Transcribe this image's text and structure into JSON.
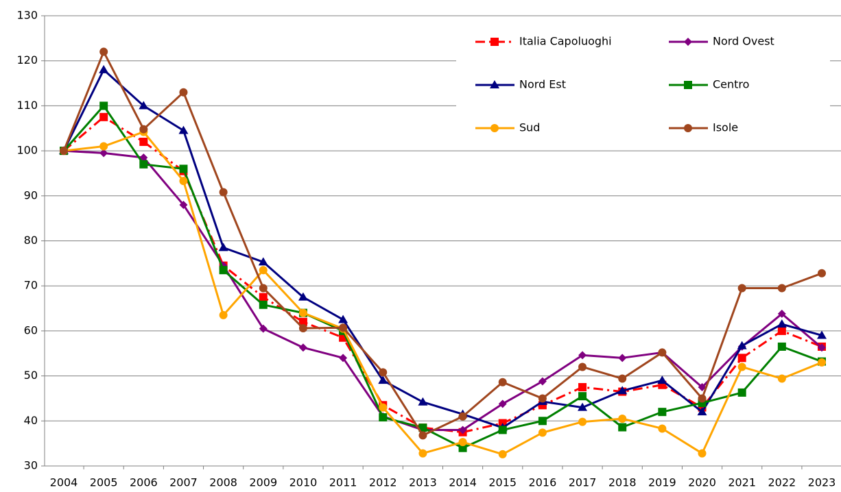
{
  "chart_data": {
    "type": "line",
    "categories": [
      "2004",
      "2005",
      "2006",
      "2007",
      "2008",
      "2009",
      "2010",
      "2011",
      "2012",
      "2013",
      "2014",
      "2015",
      "2016",
      "2017",
      "2018",
      "2019",
      "2020",
      "2021",
      "2022",
      "2023"
    ],
    "ylim": [
      30,
      130
    ],
    "yticks": [
      30,
      40,
      50,
      60,
      70,
      80,
      90,
      100,
      110,
      120,
      130
    ],
    "grid": true,
    "legend": "upper right",
    "series": [
      {
        "name": "Italia Capoluoghi",
        "color": "#ff0000",
        "marker": "square",
        "dash": true,
        "values": [
          100,
          107.5,
          102,
          95.5,
          74.5,
          67.5,
          62,
          58.5,
          43.5,
          38.5,
          37.5,
          39.5,
          43.5,
          47.5,
          46.5,
          48,
          43,
          54,
          60,
          56.5
        ]
      },
      {
        "name": "Nord Ovest",
        "color": "#800080",
        "marker": "diamond",
        "values": [
          100,
          99.5,
          98.5,
          88,
          74.5,
          60.5,
          56.3,
          54,
          41,
          38,
          38,
          43.8,
          48.8,
          54.6,
          54,
          55.2,
          47.5,
          56.5,
          63.8,
          56.3
        ]
      },
      {
        "name": "Nord Est",
        "color": "#000080",
        "marker": "triangle",
        "values": [
          100,
          118,
          110,
          104.5,
          78.5,
          75.3,
          67.5,
          62.5,
          49,
          44.2,
          41.5,
          38.5,
          44.3,
          43,
          46.7,
          49,
          42,
          56.7,
          61.5,
          59
        ]
      },
      {
        "name": "Centro",
        "color": "#008000",
        "marker": "square",
        "values": [
          100,
          110,
          97,
          96,
          73.5,
          65.8,
          64,
          60,
          40.8,
          38.5,
          34,
          38,
          40,
          45.5,
          38.6,
          42,
          44,
          46.3,
          56.5,
          53.2
        ]
      },
      {
        "name": "Sud",
        "color": "#ffa500",
        "marker": "circle",
        "values": [
          100,
          101,
          104.2,
          93.3,
          63.5,
          73.5,
          64,
          60.5,
          43,
          32.8,
          35.3,
          32.6,
          37.4,
          39.8,
          40.5,
          38.3,
          32.8,
          52,
          49.4,
          53
        ]
      },
      {
        "name": "Isole",
        "color": "#a0461e",
        "marker": "circle",
        "values": [
          100,
          122,
          104.8,
          113,
          90.8,
          69.5,
          60.6,
          60.7,
          50.8,
          36.8,
          41,
          48.6,
          45,
          52,
          49.4,
          55.2,
          45,
          69.5,
          69.5,
          72.8
        ]
      }
    ]
  }
}
